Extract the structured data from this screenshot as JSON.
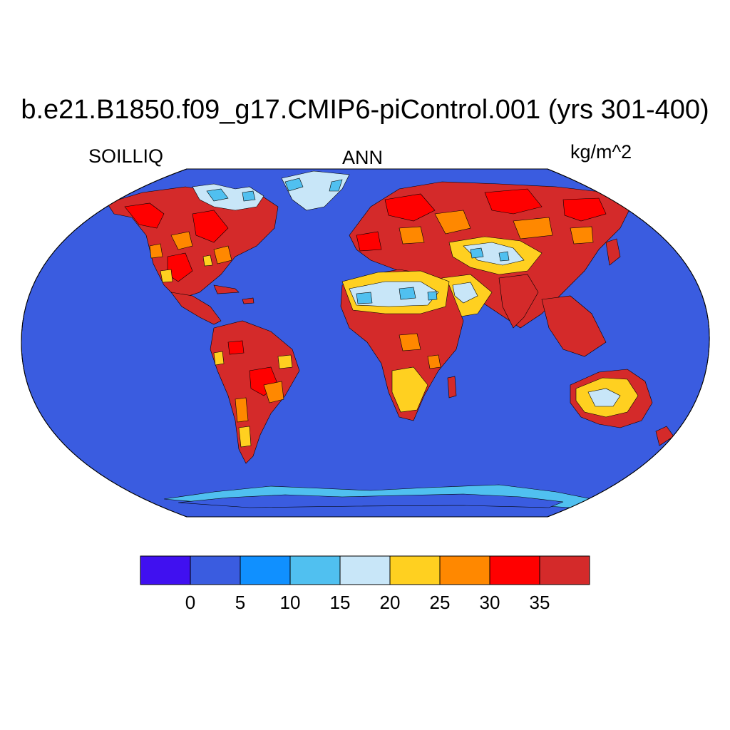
{
  "title": "b.e21.B1850.f09_g17.CMIP6-piControl.001 (yrs 301-400)",
  "subtitle_left": "SOILLIQ",
  "subtitle_center": "ANN",
  "subtitle_right": "kg/m^2",
  "colors": {
    "ocean": "#3a5ce0",
    "land_wet": "#d42a2a",
    "land_red": "#ff0000",
    "land_orange": "#ff8800",
    "land_yellow": "#ffd020",
    "land_pale": "#c8e6f8",
    "land_light_blue": "#50c0f0",
    "coast": "#000000"
  },
  "colorbar": {
    "colors": [
      "#4010f0",
      "#3a5ce0",
      "#1090ff",
      "#50c0f0",
      "#c8e6f8",
      "#ffd020",
      "#ff8800",
      "#ff0000",
      "#d42a2a"
    ],
    "tick_labels": [
      "0",
      "5",
      "10",
      "15",
      "20",
      "25",
      "30",
      "35"
    ]
  }
}
